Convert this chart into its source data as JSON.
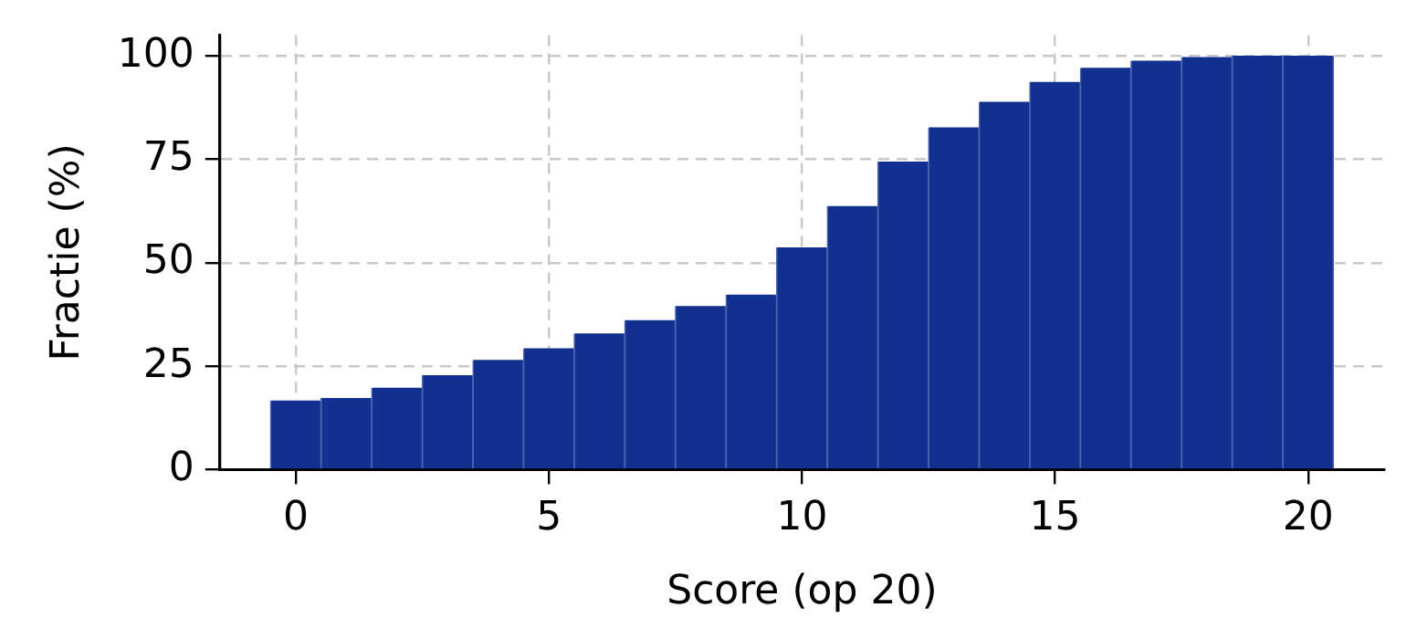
{
  "chart_data": {
    "type": "histogram",
    "xlabel": "Score (op 20)",
    "ylabel": "Fractie (%)",
    "bins": [
      -0.5,
      0.5,
      1.5,
      2.5,
      3.5,
      4.5,
      5.5,
      6.5,
      7.5,
      8.5,
      9.5,
      10.5,
      11.5,
      12.5,
      13.5,
      14.5,
      15.5,
      16.5,
      17.5,
      18.5,
      19.5,
      20.5
    ],
    "values": [
      16.7,
      17.3,
      19.8,
      22.8,
      26.5,
      29.3,
      32.9,
      36.1,
      39.5,
      42.3,
      53.7,
      63.7,
      74.4,
      82.7,
      88.9,
      93.7,
      97.1,
      98.8,
      99.7,
      100,
      100
    ],
    "color": "#12308f",
    "xlim": [
      -1.5,
      21.5
    ],
    "xticks": [
      0,
      5,
      10,
      15,
      20
    ],
    "ylim": [
      0,
      105
    ],
    "yticks": [
      0,
      25,
      50,
      75,
      100
    ],
    "grid": true
  }
}
